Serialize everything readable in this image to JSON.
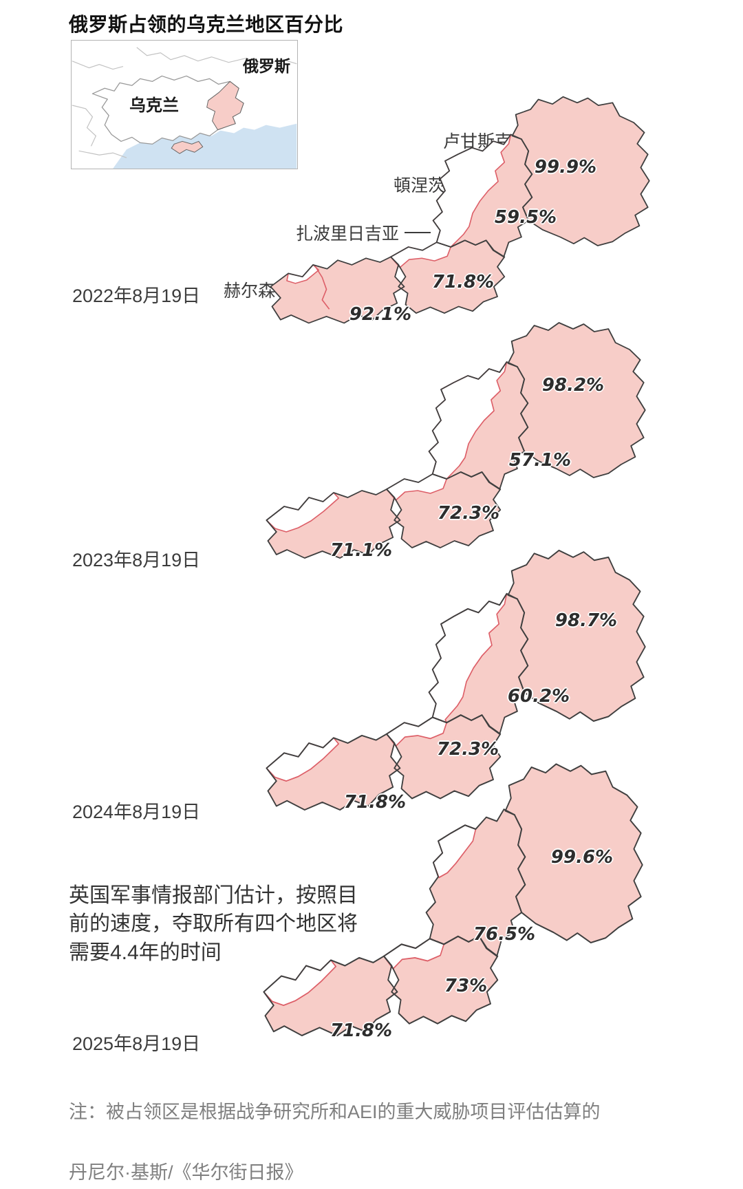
{
  "title": "俄罗斯占领的乌克兰地区百分比",
  "inset": {
    "russia_label": "俄罗斯",
    "ukraine_label": "乌克兰"
  },
  "regions": [
    {
      "name": "卢甘斯克"
    },
    {
      "name": "頓涅茨克"
    },
    {
      "name": "扎波里日吉亚"
    },
    {
      "name": "赫尔森"
    }
  ],
  "maps": [
    {
      "date": "2022年8月19日",
      "values": {
        "luhansk": "99.9%",
        "donetsk": "59.5%",
        "zaporizhzhia": "71.8%",
        "kherson": "92.1%"
      }
    },
    {
      "date": "2023年8月19日",
      "values": {
        "luhansk": "98.2%",
        "donetsk": "57.1%",
        "zaporizhzhia": "72.3%",
        "kherson": "71.1%"
      }
    },
    {
      "date": "2024年8月19日",
      "values": {
        "luhansk": "98.7%",
        "donetsk": "60.2%",
        "zaporizhzhia": "72.3%",
        "kherson": "71.8%"
      }
    },
    {
      "date": "2025年8月19日",
      "values": {
        "luhansk": "99.6%",
        "donetsk": "76.5%",
        "zaporizhzhia": "73%",
        "kherson": "71.8%"
      }
    }
  ],
  "annotation": "英国军事情报部门估计，按照目前的速度，夺取所有四个地区将需要4.4年的时间",
  "note": "注：被占领区是根据战争研究所和AEI的重大威胁项目评估估算的",
  "credit": "丹尼尔·基斯/《华尔街日报》",
  "colors": {
    "occupied_fill": "#f7cdc8",
    "frontline_red": "#dd5f68",
    "oblast_outline": "#3f3f3f",
    "sea_blue": "#cfe2f2"
  },
  "chart_data": {
    "type": "table",
    "title": "俄罗斯占领的乌克兰地区百分比",
    "categories": [
      "卢甘斯克",
      "頓涅茨克",
      "扎波里日吉亚",
      "赫尔森"
    ],
    "series": [
      {
        "name": "2022年8月19日",
        "values": [
          99.9,
          59.5,
          71.8,
          92.1
        ]
      },
      {
        "name": "2023年8月19日",
        "values": [
          98.2,
          57.1,
          72.3,
          71.1
        ]
      },
      {
        "name": "2024年8月19日",
        "values": [
          98.7,
          60.2,
          72.3,
          71.8
        ]
      },
      {
        "name": "2025年8月19日",
        "values": [
          99.6,
          76.5,
          73,
          71.8
        ]
      }
    ],
    "unit": "%",
    "annotation": "英国军事情报部门估计，按照目前的速度，夺取所有四个地区将需要4.4年的时间"
  }
}
